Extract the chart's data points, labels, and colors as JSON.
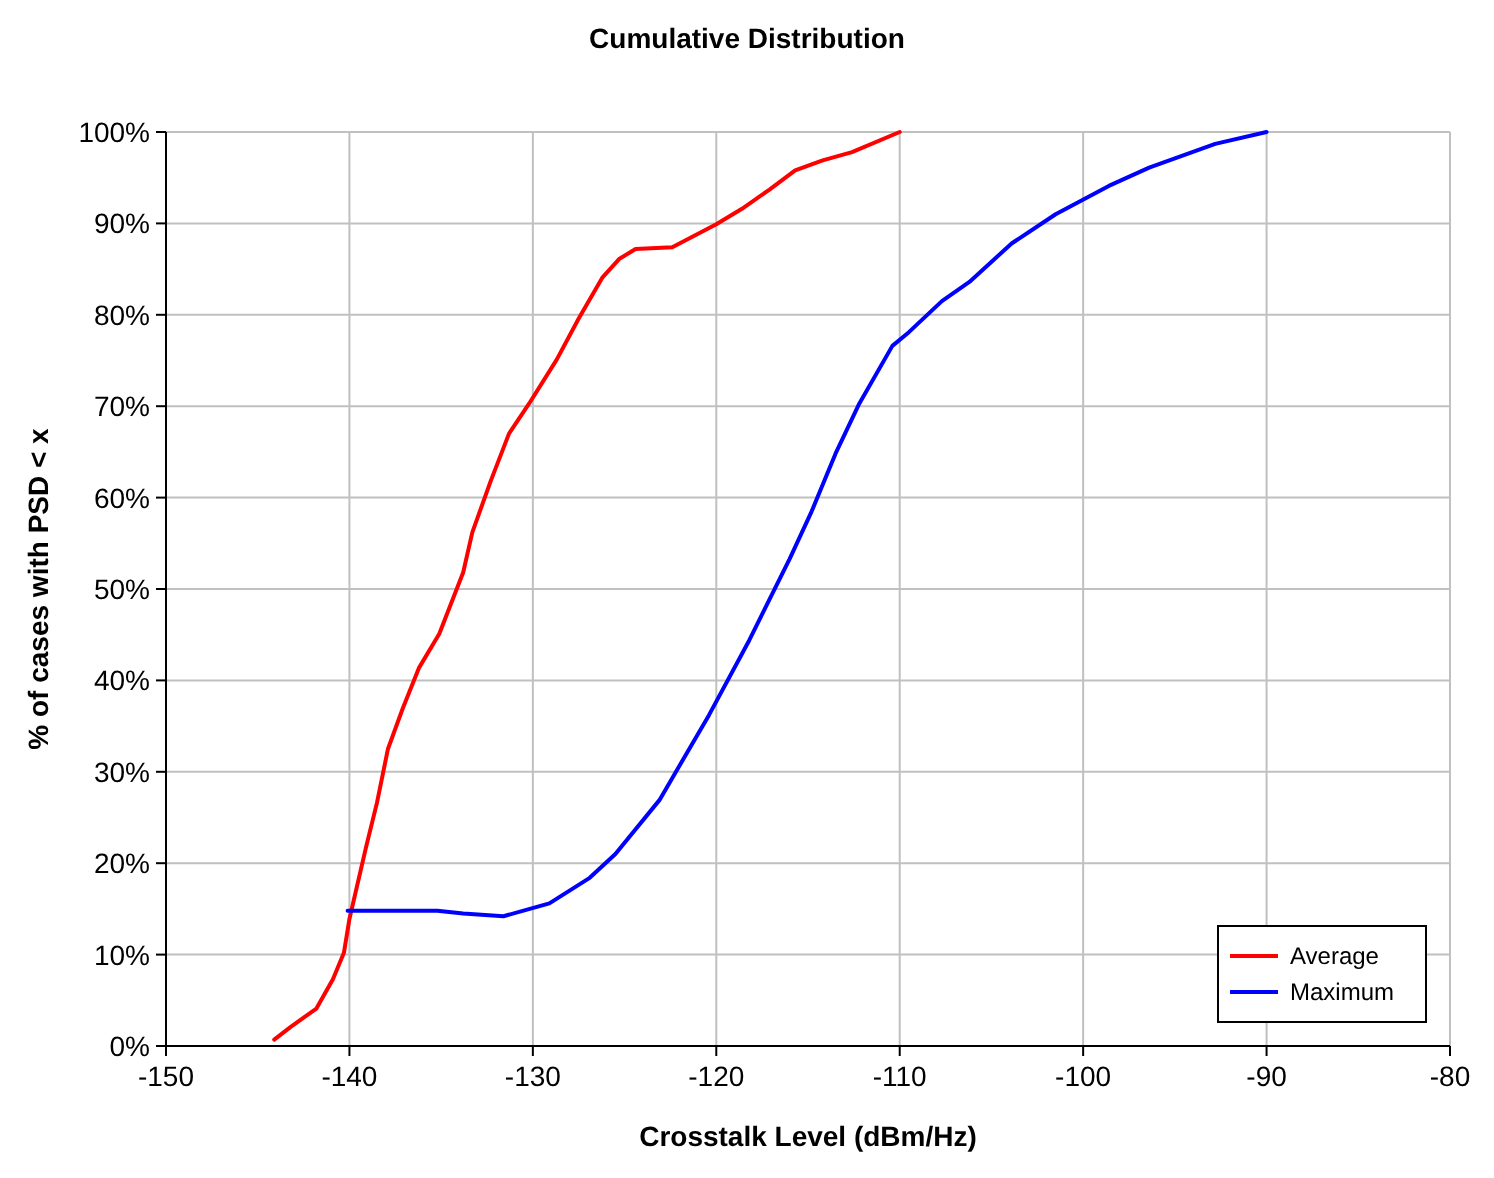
{
  "chart_data": {
    "type": "line",
    "title": "Cumulative Distribution",
    "xlabel": "Crosstalk Level (dBm/Hz)",
    "ylabel": "% of cases with PSD < x",
    "xlim": [
      -150,
      -80
    ],
    "xticks": [
      -150,
      -140,
      -130,
      -120,
      -110,
      -100,
      -90,
      -80
    ],
    "ylim": [
      0,
      100
    ],
    "yticks": [
      {
        "value": 0,
        "label": "0%"
      },
      {
        "value": 10,
        "label": "10%"
      },
      {
        "value": 20,
        "label": "20%"
      },
      {
        "value": 30,
        "label": "30%"
      },
      {
        "value": 40,
        "label": "40%"
      },
      {
        "value": 50,
        "label": "50%"
      },
      {
        "value": 60,
        "label": "60%"
      },
      {
        "value": 70,
        "label": "70%"
      },
      {
        "value": 80,
        "label": "80%"
      },
      {
        "value": 90,
        "label": "90%"
      },
      {
        "value": 100,
        "label": "100%"
      }
    ],
    "grid": true,
    "legend": "bottom right",
    "marker": "none",
    "line_style": "solid",
    "series": [
      {
        "name": "Average",
        "color": "#ff0000",
        "x": [
          -144.1,
          -143.2,
          -141.8,
          -140.9,
          -140.3,
          -140,
          -139.1,
          -138.5,
          -137.9,
          -137.1,
          -136.2,
          -135.1,
          -133.8,
          -133.3,
          -132.3,
          -131.3,
          -130.2,
          -128.7,
          -127.5,
          -126.2,
          -125.3,
          -124.4,
          -122.4,
          -120,
          -118.6,
          -117.1,
          -115.7,
          -114.2,
          -112.6,
          -110
        ],
        "values": [
          0.7,
          2.1,
          4.1,
          7.3,
          10.2,
          13.9,
          21.7,
          26.6,
          32.5,
          36.9,
          41.4,
          45.1,
          51.8,
          56.2,
          61.8,
          67,
          70.3,
          75.1,
          79.6,
          84.1,
          86.1,
          87.2,
          87.4,
          89.9,
          91.6,
          93.7,
          95.8,
          96.9,
          97.8,
          100
        ]
      },
      {
        "name": "Maximum",
        "color": "#0000ff",
        "x": [
          -140.1,
          -135.2,
          -133.8,
          -131.6,
          -129.1,
          -126.9,
          -125.5,
          -123.1,
          -120.4,
          -118.2,
          -116,
          -114.8,
          -113.5,
          -112.2,
          -110.4,
          -109.5,
          -107.7,
          -106.2,
          -103.9,
          -101.5,
          -98.6,
          -96.4,
          -92.8,
          -90
        ],
        "values": [
          14.8,
          14.8,
          14.5,
          14.2,
          15.6,
          18.4,
          21,
          26.9,
          36.2,
          44.4,
          53.3,
          58.5,
          64.8,
          70.3,
          76.6,
          78.1,
          81.5,
          83.6,
          87.8,
          91,
          94.1,
          96.1,
          98.7,
          100
        ]
      }
    ]
  }
}
